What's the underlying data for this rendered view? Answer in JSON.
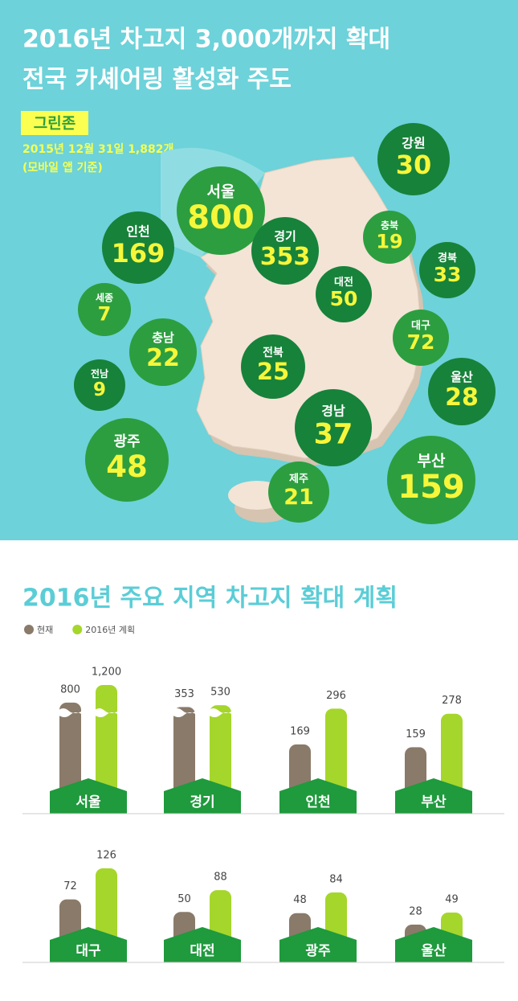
{
  "header": {
    "title_lines": [
      "2016년 차고지 3,000개까지 확대",
      "전국 카셰어링 활성화 주도"
    ]
  },
  "map": {
    "badge": "그린존",
    "note_lines": [
      "2015년 12월 31일 1,882개",
      "(모바일 앱 기준)"
    ],
    "regions": [
      {
        "name": "강원",
        "value": 30,
        "color": "#17823a"
      },
      {
        "name": "서울",
        "value": 800,
        "color": "#2c9e3f"
      },
      {
        "name": "인천",
        "value": 169,
        "color": "#17823a"
      },
      {
        "name": "경기",
        "value": 353,
        "color": "#17823a"
      },
      {
        "name": "충북",
        "value": 19,
        "color": "#2c9e3f"
      },
      {
        "name": "경북",
        "value": 33,
        "color": "#17823a"
      },
      {
        "name": "대전",
        "value": 50,
        "color": "#17823a"
      },
      {
        "name": "세종",
        "value": 7,
        "color": "#2c9e3f"
      },
      {
        "name": "충남",
        "value": 22,
        "color": "#2c9e3f"
      },
      {
        "name": "대구",
        "value": 72,
        "color": "#2c9e3f"
      },
      {
        "name": "전북",
        "value": 25,
        "color": "#17823a"
      },
      {
        "name": "전남",
        "value": 9,
        "color": "#17823a"
      },
      {
        "name": "울산",
        "value": 28,
        "color": "#17823a"
      },
      {
        "name": "경남",
        "value": 37,
        "color": "#17823a"
      },
      {
        "name": "광주",
        "value": 48,
        "color": "#2c9e3f"
      },
      {
        "name": "부산",
        "value": 159,
        "color": "#2c9e3f"
      },
      {
        "name": "제주",
        "value": 21,
        "color": "#2c9e3f"
      }
    ]
  },
  "chart_data": [
    {
      "type": "bar",
      "title": "2016년 주요 지역 차고지 확대 계획",
      "categories": [
        "서울",
        "경기",
        "인천",
        "부산"
      ],
      "series": [
        {
          "name": "현재",
          "color": "#8a7a69",
          "values": [
            800,
            353,
            169,
            159
          ]
        },
        {
          "name": "2016년 계획",
          "color": "#a5d62b",
          "values": [
            1200,
            530,
            296,
            278
          ],
          "value_labels": [
            "1,200",
            "530",
            "296",
            "278"
          ]
        }
      ],
      "ylim": [
        0,
        400
      ],
      "axis_break": [
        300,
        1150
      ]
    },
    {
      "type": "bar",
      "categories": [
        "대구",
        "대전",
        "광주",
        "울산"
      ],
      "series": [
        {
          "color": "#8a7a69",
          "values": [
            72,
            50,
            48,
            28
          ]
        },
        {
          "color": "#a5d62b",
          "values": [
            126,
            88,
            84,
            49
          ]
        }
      ],
      "ylim": [
        0,
        140
      ]
    }
  ]
}
